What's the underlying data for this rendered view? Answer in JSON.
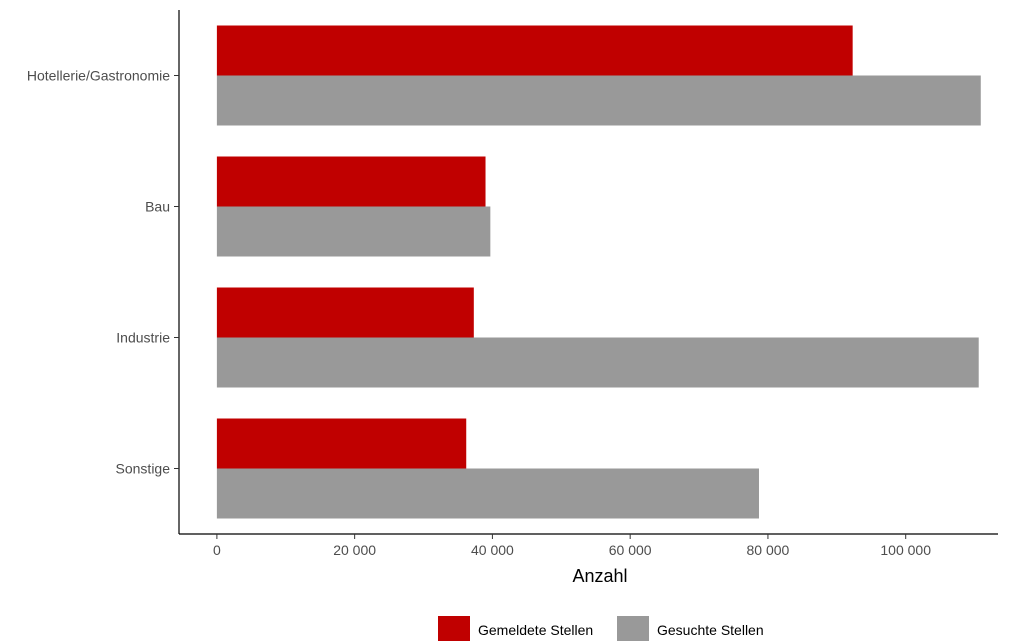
{
  "chart_data": {
    "type": "bar",
    "orientation": "horizontal",
    "categories": [
      "Hotellerie/Gastronomie",
      "Bau",
      "Industrie",
      "Sonstige"
    ],
    "series": [
      {
        "name": "Gemeldete Stellen",
        "color": "#c00000",
        "values": [
          92300,
          39000,
          37300,
          36200
        ]
      },
      {
        "name": "Gesuchte Stellen",
        "color": "#999999",
        "values": [
          110900,
          39700,
          110600,
          78700
        ]
      }
    ],
    "xlabel": "Anzahl",
    "ylabel": "",
    "xlim": [
      -5500,
      113400
    ],
    "xticks": [
      0,
      20000,
      40000,
      60000,
      80000,
      100000
    ],
    "xtick_labels": [
      "0",
      "20 000",
      "40 000",
      "60 000",
      "80 000",
      "100 000"
    ],
    "grid": false,
    "legend_position": "bottom"
  }
}
